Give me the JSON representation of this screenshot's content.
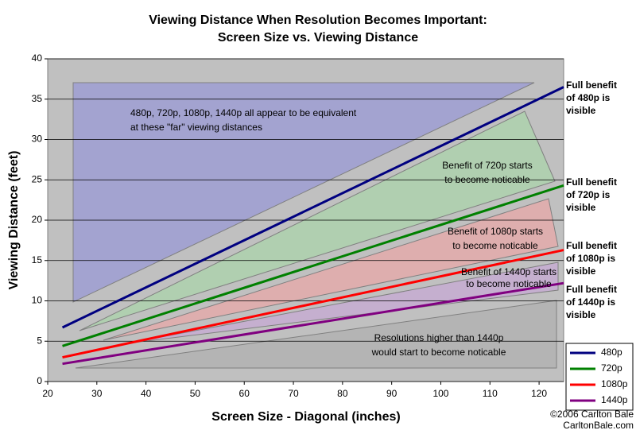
{
  "chart_data": {
    "type": "line",
    "title": [
      "Viewing Distance When Resolution Becomes Important:",
      "Screen Size vs. Viewing Distance"
    ],
    "x_label": "Screen Size - Diagonal (inches)",
    "y_label": "Viewing Distance (feet)",
    "x": [
      23,
      125
    ],
    "series": [
      {
        "name": "480p",
        "color": "#000080",
        "values": [
          6.7,
          36.5
        ]
      },
      {
        "name": "720p",
        "color": "#008000",
        "values": [
          4.4,
          24.3
        ]
      },
      {
        "name": "1080p",
        "color": "#ff0000",
        "values": [
          3.0,
          16.3
        ]
      },
      {
        "name": "1440p",
        "color": "#800080",
        "values": [
          2.2,
          12.2
        ]
      }
    ],
    "xlim": [
      20,
      125
    ],
    "xticks": [
      20,
      30,
      40,
      50,
      60,
      70,
      80,
      90,
      100,
      110,
      120
    ],
    "ylim": [
      0,
      40
    ],
    "yticks": [
      0,
      5,
      10,
      15,
      20,
      25,
      30,
      35,
      40
    ],
    "grid": true,
    "annotations": [
      [
        "480p, 720p, 1080p, 1440p all appear to be equivalent",
        "at these \"far\" viewing distances"
      ],
      [
        "Benefit of 720p starts",
        "to become noticable"
      ],
      [
        "Benefit of 1080p starts",
        "to become noticable"
      ],
      [
        "Benefit of 1440p starts",
        "to become noticable"
      ],
      [
        "Resolutions higher than 1440p",
        "would start to become noticable"
      ]
    ],
    "side_labels": [
      [
        "Full benefit",
        "of 480p is",
        "visible"
      ],
      [
        "Full benefit",
        "of 720p is",
        "visible"
      ],
      [
        "Full benefit",
        "of 1080p is",
        "visible"
      ],
      [
        "Full benefit",
        "of 1440p is",
        "visible"
      ]
    ],
    "credit": [
      "©2006 Carlton Bale",
      "CarltonBale.com"
    ]
  }
}
